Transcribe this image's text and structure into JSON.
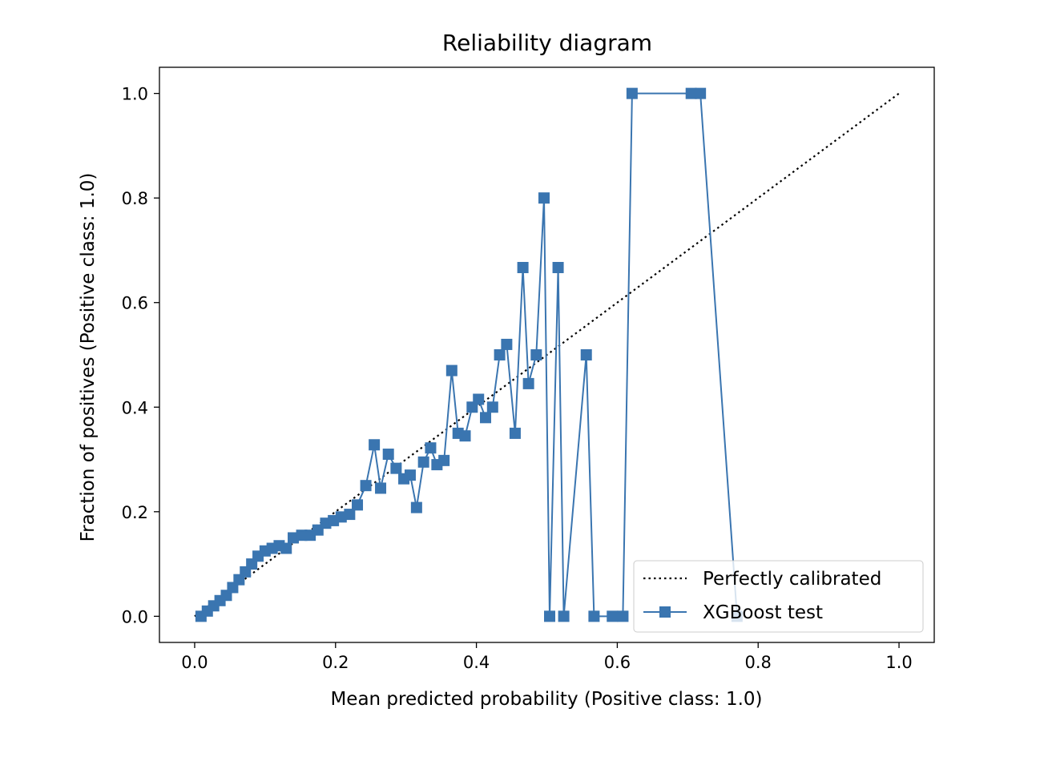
{
  "chart_data": {
    "type": "line",
    "title": "Reliability diagram",
    "xlabel": "Mean predicted probability (Positive class: 1.0)",
    "ylabel": "Fraction of positives (Positive class: 1.0)",
    "xlim": [
      -0.05,
      1.05
    ],
    "ylim": [
      -0.05,
      1.05
    ],
    "x_ticks": [
      0.0,
      0.2,
      0.4,
      0.6,
      0.8,
      1.0
    ],
    "x_tick_labels": [
      "0.0",
      "0.2",
      "0.4",
      "0.6",
      "0.8",
      "1.0"
    ],
    "y_ticks": [
      0.0,
      0.2,
      0.4,
      0.6,
      0.8,
      1.0
    ],
    "y_tick_labels": [
      "0.0",
      "0.2",
      "0.4",
      "0.6",
      "0.8",
      "1.0"
    ],
    "grid": false,
    "legend_position": "lower-right",
    "series": [
      {
        "name": "Perfectly calibrated",
        "style": "dotted",
        "color": "#000000",
        "x": [
          0.0,
          1.0
        ],
        "y": [
          0.0,
          1.0
        ]
      },
      {
        "name": "XGBoost test",
        "style": "line-square-markers",
        "color": "#3a75b0",
        "x": [
          0.009,
          0.018,
          0.027,
          0.036,
          0.045,
          0.054,
          0.063,
          0.072,
          0.081,
          0.09,
          0.1,
          0.11,
          0.12,
          0.13,
          0.14,
          0.152,
          0.164,
          0.175,
          0.186,
          0.197,
          0.208,
          0.22,
          0.231,
          0.243,
          0.255,
          0.264,
          0.275,
          0.286,
          0.297,
          0.306,
          0.315,
          0.325,
          0.335,
          0.344,
          0.354,
          0.365,
          0.374,
          0.384,
          0.394,
          0.403,
          0.413,
          0.423,
          0.433,
          0.443,
          0.455,
          0.466,
          0.474,
          0.485,
          0.496,
          0.504,
          0.516,
          0.524,
          0.556,
          0.567,
          0.593,
          0.608,
          0.621,
          0.705,
          0.718,
          0.77
        ],
        "y": [
          0.0,
          0.01,
          0.02,
          0.03,
          0.04,
          0.055,
          0.07,
          0.085,
          0.1,
          0.115,
          0.125,
          0.13,
          0.135,
          0.13,
          0.15,
          0.155,
          0.155,
          0.165,
          0.178,
          0.183,
          0.19,
          0.195,
          0.213,
          0.25,
          0.328,
          0.245,
          0.31,
          0.283,
          0.263,
          0.27,
          0.208,
          0.295,
          0.322,
          0.29,
          0.298,
          0.47,
          0.35,
          0.345,
          0.4,
          0.415,
          0.38,
          0.4,
          0.5,
          0.52,
          0.35,
          0.667,
          0.445,
          0.5,
          0.8,
          0.0,
          0.667,
          0.0,
          0.5,
          0.0,
          0.0,
          0.0,
          1.0,
          1.0,
          1.0,
          0.0
        ]
      }
    ]
  }
}
